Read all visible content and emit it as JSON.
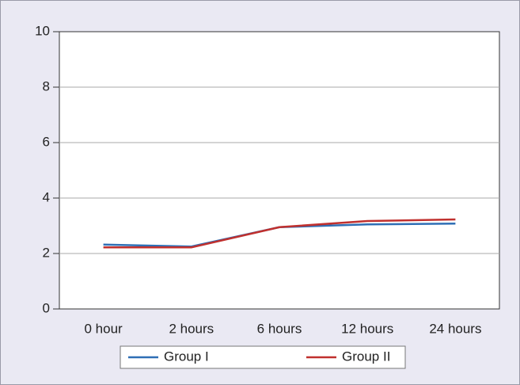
{
  "chart_data": {
    "type": "line",
    "categories": [
      "0 hour",
      "2 hours",
      "6 hours",
      "12 hours",
      "24 hours"
    ],
    "series": [
      {
        "name": "Group I",
        "color": "#2f6fb5",
        "values": [
          2.32,
          2.25,
          2.95,
          3.05,
          3.08
        ]
      },
      {
        "name": "Group II",
        "color": "#c0302e",
        "values": [
          2.22,
          2.22,
          2.95,
          3.17,
          3.23
        ]
      }
    ],
    "ylim": [
      0,
      10
    ],
    "yticks": [
      0,
      2,
      4,
      6,
      8,
      10
    ],
    "grid": true,
    "legend": "bottom"
  }
}
